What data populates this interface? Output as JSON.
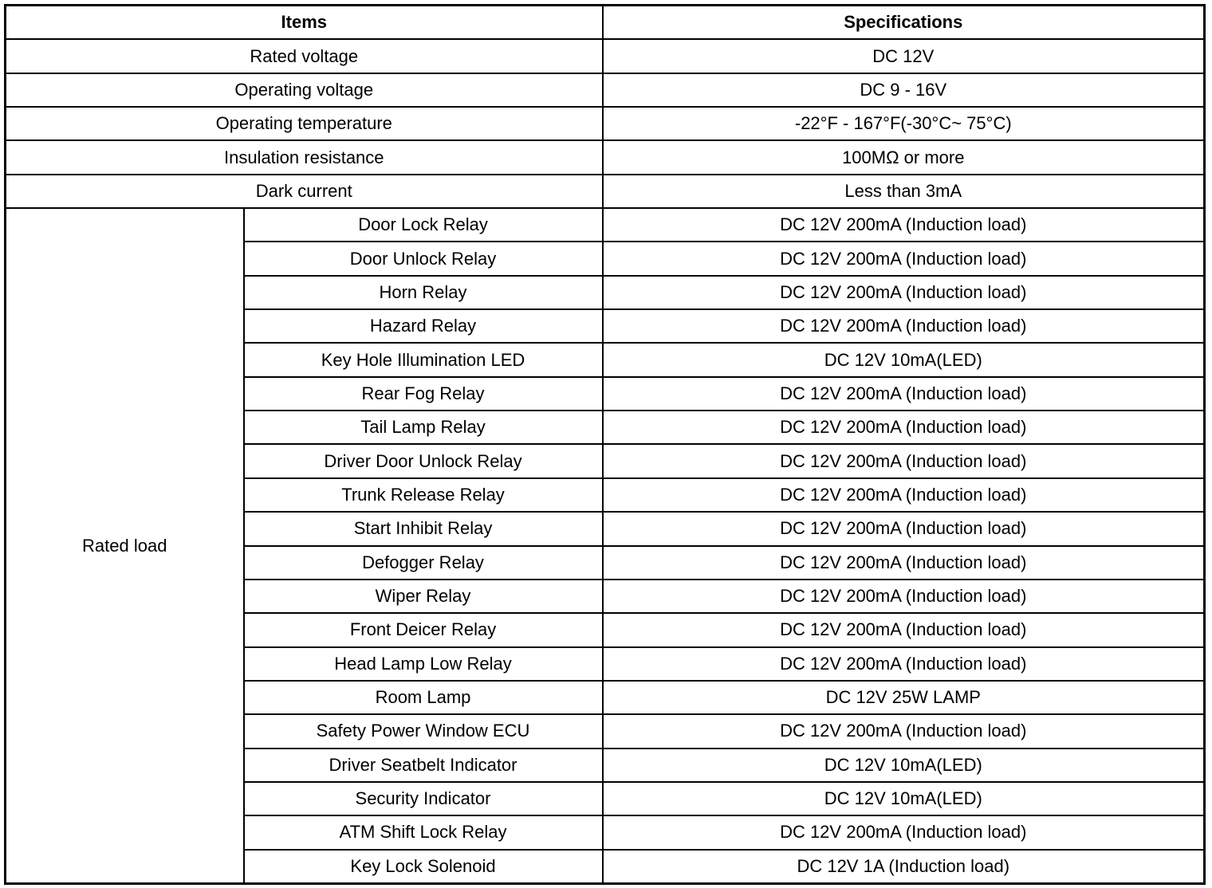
{
  "header": {
    "items": "Items",
    "specifications": "Specifications"
  },
  "general_rows": [
    {
      "item": "Rated voltage",
      "spec": "DC 12V"
    },
    {
      "item": "Operating voltage",
      "spec": "DC 9 - 16V"
    },
    {
      "item": "Operating temperature",
      "spec": "-22°F - 167°F(-30°C~ 75°C)"
    },
    {
      "item": "Insulation resistance",
      "spec": "100MΩ or more"
    },
    {
      "item": "Dark current",
      "spec": "Less than 3mA"
    }
  ],
  "rated_load": {
    "label": "Rated load",
    "rows": [
      {
        "item": "Door Lock Relay",
        "spec": "DC 12V 200mA (Induction load)"
      },
      {
        "item": "Door Unlock Relay",
        "spec": "DC 12V 200mA (Induction load)"
      },
      {
        "item": "Horn Relay",
        "spec": "DC 12V 200mA (Induction load)"
      },
      {
        "item": "Hazard Relay",
        "spec": "DC 12V 200mA (Induction load)"
      },
      {
        "item": "Key Hole Illumination LED",
        "spec": "DC 12V 10mA(LED)"
      },
      {
        "item": "Rear Fog Relay",
        "spec": "DC 12V 200mA (Induction load)"
      },
      {
        "item": "Tail Lamp Relay",
        "spec": "DC 12V 200mA (Induction load)"
      },
      {
        "item": "Driver Door Unlock Relay",
        "spec": "DC 12V 200mA (Induction load)"
      },
      {
        "item": "Trunk Release Relay",
        "spec": "DC 12V 200mA (Induction load)"
      },
      {
        "item": "Start Inhibit Relay",
        "spec": "DC 12V 200mA (Induction load)"
      },
      {
        "item": "Defogger Relay",
        "spec": "DC 12V 200mA (Induction load)"
      },
      {
        "item": "Wiper Relay",
        "spec": "DC 12V 200mA (Induction load)"
      },
      {
        "item": "Front Deicer Relay",
        "spec": "DC 12V 200mA (Induction load)"
      },
      {
        "item": "Head Lamp Low Relay",
        "spec": "DC 12V 200mA (Induction load)"
      },
      {
        "item": "Room Lamp",
        "spec": "DC 12V 25W LAMP"
      },
      {
        "item": "Safety Power Window ECU",
        "spec": "DC 12V 200mA (Induction load)"
      },
      {
        "item": "Driver Seatbelt Indicator",
        "spec": "DC 12V 10mA(LED)"
      },
      {
        "item": "Security Indicator",
        "spec": "DC 12V 10mA(LED)"
      },
      {
        "item": "ATM Shift Lock Relay",
        "spec": "DC 12V 200mA (Induction load)"
      },
      {
        "item": "Key Lock Solenoid",
        "spec": "DC 12V 1A (Induction load)"
      }
    ]
  }
}
